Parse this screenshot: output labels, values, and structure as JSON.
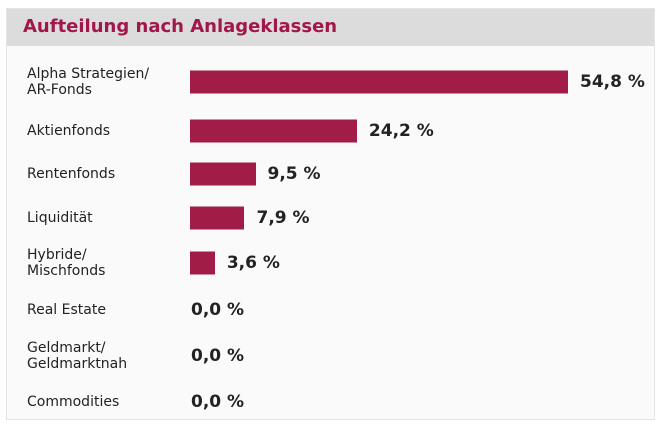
{
  "chart_data": {
    "type": "bar",
    "orientation": "horizontal",
    "title": "Aufteilung nach Anlageklassen",
    "categories": [
      "Alpha Strategien/\nAR-Fonds",
      "Aktienfonds",
      "Rentenfonds",
      "Liquidität",
      "Hybride/\nMischfonds",
      "Real Estate",
      "Geldmarkt/\nGeldmarktnah",
      "Commodities"
    ],
    "values": [
      54.8,
      24.2,
      9.5,
      7.9,
      3.6,
      0.0,
      0.0,
      0.0
    ],
    "value_labels": [
      "54,8 %",
      "24,2 %",
      "9,5 %",
      "7,9 %",
      "3,6 %",
      "0,0 %",
      "0,0 %",
      "0,0 %"
    ],
    "color": "#a11d48"
  }
}
